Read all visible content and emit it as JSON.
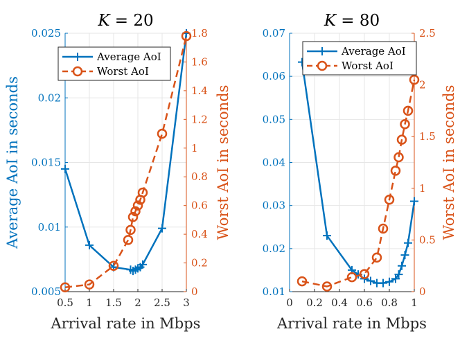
{
  "chart_data": [
    {
      "type": "line",
      "title": "K = 20",
      "title_var": "K",
      "title_rest": " = 20",
      "xlabel": "Arrival rate in Mbps",
      "ylabel_left": "Average AoI in seconds",
      "ylabel_right": "Worst AoI in seconds",
      "xlim": [
        0.5,
        3
      ],
      "xticks": [
        0.5,
        1,
        1.5,
        2,
        2.5,
        3
      ],
      "xtick_labels": [
        "0.5",
        "1",
        "1.5",
        "2",
        "2.5",
        "3"
      ],
      "ylim_left": [
        0.005,
        0.025
      ],
      "yticks_left": [
        0.005,
        0.01,
        0.015,
        0.02,
        0.025
      ],
      "ytick_labels_left": [
        "0.005",
        "0.01",
        "0.015",
        "0.02",
        "0.025"
      ],
      "ylim_right": [
        0,
        1.8
      ],
      "yticks_right": [
        0,
        0.2,
        0.4,
        0.6,
        0.8,
        1,
        1.2,
        1.4,
        1.6,
        1.8
      ],
      "ytick_labels_right": [
        "0",
        "0.2",
        "0.4",
        "0.6",
        "0.8",
        "1",
        "1.2",
        "1.4",
        "1.6",
        "1.8"
      ],
      "legend_position": "top-left",
      "series": [
        {
          "name": "Average AoI",
          "axis": "left",
          "color": "#0072BD",
          "style": "solid",
          "marker": "plus",
          "x": [
            0.5,
            1.0,
            1.5,
            1.85,
            1.9,
            1.95,
            2.0,
            2.05,
            2.1,
            2.5,
            3.0
          ],
          "y": [
            0.0145,
            0.0086,
            0.0069,
            0.0067,
            0.0066,
            0.0067,
            0.0068,
            0.0069,
            0.0071,
            0.0099,
            0.025
          ]
        },
        {
          "name": "Worst AoI",
          "axis": "right",
          "color": "#D95319",
          "style": "dashed",
          "marker": "circle",
          "x": [
            0.5,
            1.0,
            1.5,
            1.8,
            1.85,
            1.9,
            1.95,
            2.0,
            2.05,
            2.1,
            2.5,
            3.0
          ],
          "y": [
            0.03,
            0.05,
            0.18,
            0.36,
            0.43,
            0.52,
            0.56,
            0.6,
            0.64,
            0.69,
            1.1,
            1.78
          ]
        }
      ]
    },
    {
      "type": "line",
      "title": "K = 80",
      "title_var": "K",
      "title_rest": " = 80",
      "xlabel": "Arrival rate in Mbps",
      "ylabel_left": "",
      "ylabel_right": "Worst AoI in seconds",
      "xlim": [
        0,
        1
      ],
      "xticks": [
        0,
        0.2,
        0.4,
        0.6,
        0.8,
        1
      ],
      "xtick_labels": [
        "0",
        "0.2",
        "0.4",
        "0.6",
        "0.8",
        "1"
      ],
      "ylim_left": [
        0.01,
        0.07
      ],
      "yticks_left": [
        0.01,
        0.02,
        0.03,
        0.04,
        0.05,
        0.06,
        0.07
      ],
      "ytick_labels_left": [
        "0.01",
        "0.02",
        "0.03",
        "0.04",
        "0.05",
        "0.06",
        "0.07"
      ],
      "ylim_right": [
        0,
        2.5
      ],
      "yticks_right": [
        0,
        0.5,
        1,
        1.5,
        2,
        2.5
      ],
      "ytick_labels_right": [
        "0",
        "0.5",
        "1",
        "1.5",
        "2",
        "2.5"
      ],
      "legend_position": "top-right",
      "series": [
        {
          "name": "Average AoI",
          "axis": "left",
          "color": "#0072BD",
          "style": "solid",
          "marker": "plus",
          "x": [
            0.1,
            0.3,
            0.5,
            0.55,
            0.6,
            0.65,
            0.7,
            0.75,
            0.8,
            0.85,
            0.875,
            0.9,
            0.925,
            0.95,
            1.0
          ],
          "y": [
            0.0633,
            0.023,
            0.015,
            0.014,
            0.013,
            0.0125,
            0.012,
            0.012,
            0.0123,
            0.013,
            0.014,
            0.016,
            0.0185,
            0.0213,
            0.031
          ]
        },
        {
          "name": "Worst AoI",
          "axis": "right",
          "color": "#D95319",
          "style": "dashed",
          "marker": "circle",
          "x": [
            0.1,
            0.3,
            0.5,
            0.6,
            0.7,
            0.75,
            0.8,
            0.85,
            0.875,
            0.9,
            0.925,
            0.95,
            1.0
          ],
          "y": [
            0.1,
            0.05,
            0.14,
            0.17,
            0.33,
            0.61,
            0.89,
            1.17,
            1.3,
            1.47,
            1.62,
            1.75,
            2.05
          ]
        }
      ]
    }
  ]
}
